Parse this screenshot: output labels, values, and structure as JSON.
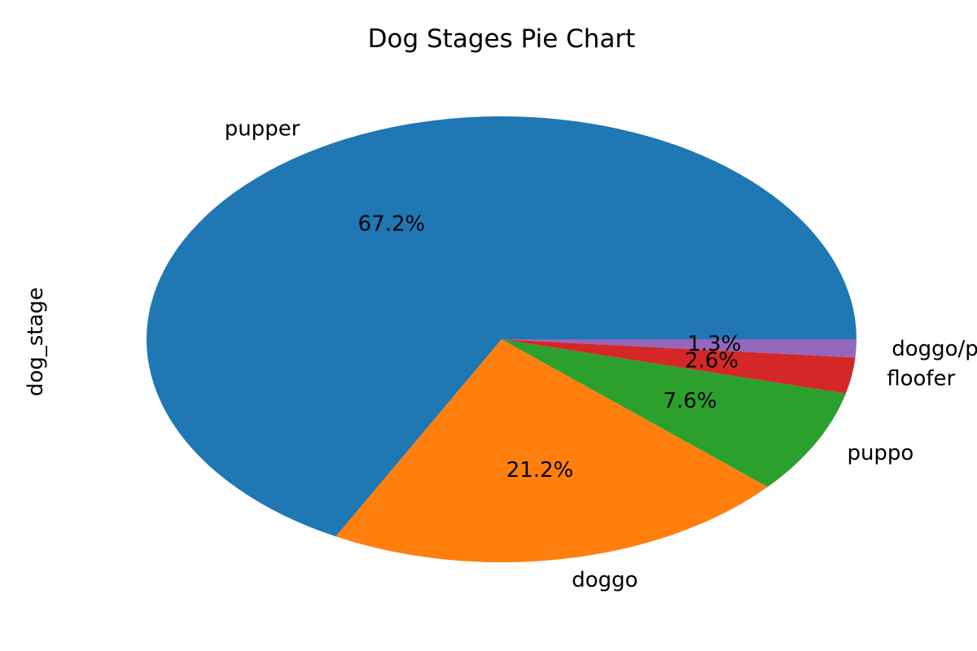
{
  "chart_data": {
    "type": "pie",
    "title": "Dog Stages Pie Chart",
    "ylabel": "dog_stage",
    "start_angle_deg": 0,
    "direction": "counterclockwise",
    "slices": [
      {
        "label": "pupper",
        "value": 67.2,
        "pct_label": "67.2%",
        "color": "#1f77b4"
      },
      {
        "label": "doggo",
        "value": 21.2,
        "pct_label": "21.2%",
        "color": "#ff7f0e"
      },
      {
        "label": "puppo",
        "value": 7.6,
        "pct_label": "7.6%",
        "color": "#2ca02c"
      },
      {
        "label": "floofer",
        "value": 2.6,
        "pct_label": "2.6%",
        "color": "#d62728"
      },
      {
        "label": "doggo/puppo",
        "value": 1.3,
        "pct_label": "1.3%",
        "color": "#9467bd"
      }
    ]
  }
}
